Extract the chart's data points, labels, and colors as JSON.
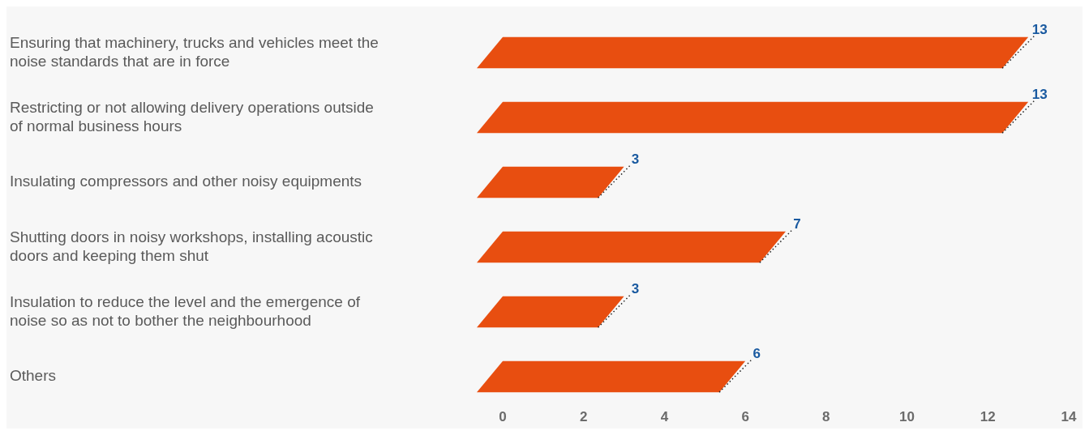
{
  "chart_data": {
    "type": "bar",
    "orientation": "horizontal",
    "categories": [
      "Ensuring that machinery, trucks and vehicles meet the noise standards that are in force",
      "Restricting or not allowing delivery operations outside of normal business hours",
      "Insulating compressors and other noisy equipments",
      "Shutting doors in noisy workshops, installing acoustic doors and keeping them shut",
      "Insulation to reduce the level and the emergence of noise so as not to bother the neighbourhood",
      "Others"
    ],
    "values": [
      13,
      13,
      3,
      7,
      3,
      6
    ],
    "color": "#e84e10",
    "xlim": [
      0,
      14
    ],
    "xticks": [
      0,
      2,
      4,
      6,
      8,
      10,
      12,
      14
    ],
    "data_labels": true
  }
}
